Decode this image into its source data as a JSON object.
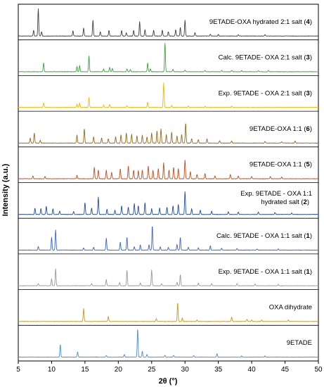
{
  "chart_data": {
    "type": "line",
    "xlabel": "2θ (°)",
    "ylabel": "Intensity (a.u.)",
    "xlim": [
      5,
      50
    ],
    "xticks": [
      5,
      10,
      15,
      20,
      25,
      30,
      35,
      40,
      45,
      50
    ],
    "grid": false,
    "layout": "stacked panels, top to bottom",
    "series": [
      {
        "label_parts": [
          {
            "t": "9ETADE-OXA hydrated 2:1 salt ("
          },
          {
            "t": "4",
            "b": true
          },
          {
            "t": ")"
          }
        ],
        "color": "#404040",
        "peaks": [
          [
            7.3,
            0.2
          ],
          [
            8.0,
            0.95
          ],
          [
            8.5,
            0.15
          ],
          [
            13.2,
            0.18
          ],
          [
            14.8,
            0.28
          ],
          [
            16.2,
            0.55
          ],
          [
            17.3,
            0.15
          ],
          [
            18.6,
            0.2
          ],
          [
            20.5,
            0.2
          ],
          [
            21.2,
            0.12
          ],
          [
            22.3,
            0.2
          ],
          [
            23.2,
            0.5
          ],
          [
            24.0,
            0.22
          ],
          [
            25.3,
            0.2
          ],
          [
            26.6,
            0.2
          ],
          [
            27.5,
            0.15
          ],
          [
            28.6,
            0.22
          ],
          [
            29.3,
            0.3
          ],
          [
            30.0,
            0.55
          ],
          [
            31.5,
            0.12
          ],
          [
            33.8,
            0.06
          ],
          [
            35.0,
            0.06
          ],
          [
            38.0,
            0.05
          ],
          [
            42.0,
            0.05
          ]
        ]
      },
      {
        "label_parts": [
          {
            "t": "Calc. 9ETADE- OXA 2:1 salt ("
          },
          {
            "t": "3",
            "b": true
          },
          {
            "t": ")"
          }
        ],
        "color": "#3aa63a",
        "peaks": [
          [
            8.8,
            0.3
          ],
          [
            13.8,
            0.18
          ],
          [
            14.2,
            0.22
          ],
          [
            15.6,
            0.55
          ],
          [
            17.8,
            0.1
          ],
          [
            18.7,
            0.15
          ],
          [
            19.1,
            0.12
          ],
          [
            21.3,
            0.1
          ],
          [
            21.8,
            0.08
          ],
          [
            24.4,
            0.3
          ],
          [
            24.8,
            0.1
          ],
          [
            27.0,
            1.0
          ],
          [
            28.2,
            0.08
          ],
          [
            30.0,
            0.06
          ],
          [
            33.0,
            0.05
          ],
          [
            35.5,
            0.05
          ],
          [
            37.0,
            0.05
          ],
          [
            38.5,
            0.04
          ],
          [
            41.0,
            0.04
          ],
          [
            42.5,
            0.05
          ]
        ]
      },
      {
        "label_parts": [
          {
            "t": "Exp. 9ETADE - OXA 2:1 salt ("
          },
          {
            "t": "3",
            "b": true
          },
          {
            "t": ")"
          }
        ],
        "color": "#f5b800",
        "peaks": [
          [
            8.8,
            0.16
          ],
          [
            13.8,
            0.12
          ],
          [
            14.2,
            0.16
          ],
          [
            15.6,
            0.35
          ],
          [
            17.8,
            0.08
          ],
          [
            18.7,
            0.1
          ],
          [
            21.3,
            0.06
          ],
          [
            24.4,
            0.18
          ],
          [
            26.8,
            0.85
          ],
          [
            28.0,
            0.08
          ],
          [
            30.5,
            0.05
          ],
          [
            33.0,
            0.04
          ],
          [
            37.0,
            0.04
          ]
        ]
      },
      {
        "label_parts": [
          {
            "t": "9ETADE-OXA 1:1 ("
          },
          {
            "t": "6",
            "b": true
          },
          {
            "t": ")"
          }
        ],
        "color": "#9a6a1a",
        "peaks": [
          [
            6.8,
            0.18
          ],
          [
            7.4,
            0.35
          ],
          [
            8.3,
            0.1
          ],
          [
            13.8,
            0.28
          ],
          [
            14.9,
            0.5
          ],
          [
            16.3,
            0.22
          ],
          [
            17.5,
            0.18
          ],
          [
            18.5,
            0.15
          ],
          [
            19.6,
            0.22
          ],
          [
            20.4,
            0.28
          ],
          [
            21.2,
            0.35
          ],
          [
            22.0,
            0.3
          ],
          [
            22.8,
            0.25
          ],
          [
            23.6,
            0.28
          ],
          [
            24.3,
            0.22
          ],
          [
            25.0,
            0.35
          ],
          [
            25.8,
            0.42
          ],
          [
            26.4,
            0.5
          ],
          [
            27.2,
            0.3
          ],
          [
            28.0,
            0.38
          ],
          [
            28.8,
            0.25
          ],
          [
            29.5,
            0.3
          ],
          [
            30.1,
            0.7
          ],
          [
            31.0,
            0.15
          ],
          [
            32.0,
            0.12
          ],
          [
            33.3,
            0.15
          ],
          [
            35.2,
            0.08
          ],
          [
            37.0,
            0.08
          ],
          [
            42.0,
            0.06
          ],
          [
            44.5,
            0.05
          ],
          [
            46.5,
            0.07
          ]
        ]
      },
      {
        "label_parts": [
          {
            "t": "9ETADE-OXA 1:1 ("
          },
          {
            "t": "5",
            "b": true
          },
          {
            "t": ")"
          }
        ],
        "color": "#c2501e",
        "peaks": [
          [
            7.2,
            0.1
          ],
          [
            9.0,
            0.08
          ],
          [
            13.8,
            0.12
          ],
          [
            16.4,
            0.4
          ],
          [
            17.0,
            0.3
          ],
          [
            18.2,
            0.3
          ],
          [
            19.0,
            0.22
          ],
          [
            20.3,
            0.35
          ],
          [
            21.5,
            0.45
          ],
          [
            22.3,
            0.3
          ],
          [
            23.0,
            0.28
          ],
          [
            23.6,
            0.3
          ],
          [
            24.5,
            0.45
          ],
          [
            25.2,
            0.3
          ],
          [
            26.0,
            0.35
          ],
          [
            26.8,
            0.55
          ],
          [
            27.6,
            0.3
          ],
          [
            28.3,
            0.4
          ],
          [
            29.0,
            0.35
          ],
          [
            30.0,
            0.65
          ],
          [
            30.8,
            0.25
          ],
          [
            31.8,
            0.15
          ],
          [
            33.0,
            0.18
          ],
          [
            34.5,
            0.1
          ],
          [
            36.8,
            0.15
          ],
          [
            38.0,
            0.1
          ],
          [
            40.0,
            0.08
          ],
          [
            42.8,
            0.08
          ],
          [
            44.5,
            0.06
          ]
        ]
      },
      {
        "label_parts": [
          {
            "t": "Exp. 9ETADE - OXA 1:1"
          }
        ],
        "label2_parts": [
          {
            "t": "hydrated salt ("
          },
          {
            "t": "2",
            "b": true
          },
          {
            "t": ")"
          }
        ],
        "color": "#1f4e96",
        "peaks": [
          [
            7.5,
            0.22
          ],
          [
            8.4,
            0.2
          ],
          [
            9.2,
            0.28
          ],
          [
            10.2,
            0.2
          ],
          [
            11.2,
            0.12
          ],
          [
            13.3,
            0.1
          ],
          [
            15.0,
            0.4
          ],
          [
            16.0,
            0.22
          ],
          [
            17.0,
            0.6
          ],
          [
            18.3,
            0.18
          ],
          [
            19.5,
            0.15
          ],
          [
            20.5,
            0.3
          ],
          [
            21.5,
            0.25
          ],
          [
            22.4,
            0.38
          ],
          [
            23.0,
            0.3
          ],
          [
            24.0,
            0.4
          ],
          [
            25.0,
            0.2
          ],
          [
            26.2,
            0.22
          ],
          [
            27.3,
            0.25
          ],
          [
            28.2,
            0.3
          ],
          [
            29.0,
            0.35
          ],
          [
            30.0,
            0.8
          ],
          [
            31.0,
            0.2
          ],
          [
            32.3,
            0.15
          ],
          [
            34.0,
            0.12
          ],
          [
            36.5,
            0.1
          ],
          [
            38.0,
            0.08
          ],
          [
            41.0,
            0.08
          ],
          [
            43.5,
            0.07
          ],
          [
            46.0,
            0.05
          ]
        ]
      },
      {
        "label_parts": [
          {
            "t": "Calc. 9ETADE - OXA 1:1 salt ("
          },
          {
            "t": "1",
            "b": true
          },
          {
            "t": ")"
          }
        ],
        "color": "#3a66cc",
        "peaks": [
          [
            8.0,
            0.12
          ],
          [
            10.0,
            0.45
          ],
          [
            10.6,
            0.7
          ],
          [
            14.8,
            0.08
          ],
          [
            16.3,
            0.1
          ],
          [
            18.2,
            0.42
          ],
          [
            20.3,
            0.28
          ],
          [
            21.3,
            0.45
          ],
          [
            22.4,
            0.12
          ],
          [
            23.3,
            0.18
          ],
          [
            24.6,
            0.18
          ],
          [
            25.1,
            0.85
          ],
          [
            26.3,
            0.12
          ],
          [
            27.5,
            0.1
          ],
          [
            28.8,
            0.2
          ],
          [
            29.3,
            0.45
          ],
          [
            30.5,
            0.1
          ],
          [
            32.0,
            0.08
          ],
          [
            33.8,
            0.15
          ],
          [
            35.5,
            0.06
          ],
          [
            37.8,
            0.05
          ],
          [
            40.8,
            0.04
          ],
          [
            44.0,
            0.04
          ]
        ]
      },
      {
        "label_parts": [
          {
            "t": "Exp. 9ETADE - OXA 1:1 salt ("
          },
          {
            "t": "1",
            "b": true
          },
          {
            "t": ")"
          }
        ],
        "color": "#9a9a9a",
        "peaks": [
          [
            8.0,
            0.08
          ],
          [
            10.0,
            0.25
          ],
          [
            10.6,
            0.6
          ],
          [
            16.0,
            0.08
          ],
          [
            18.2,
            0.22
          ],
          [
            20.2,
            0.12
          ],
          [
            21.3,
            0.55
          ],
          [
            23.3,
            0.1
          ],
          [
            25.0,
            0.55
          ],
          [
            26.5,
            0.08
          ],
          [
            28.8,
            0.12
          ],
          [
            29.3,
            0.4
          ],
          [
            32.0,
            0.1
          ],
          [
            34.0,
            0.08
          ],
          [
            37.8,
            0.08
          ],
          [
            40.5,
            0.06
          ],
          [
            44.0,
            0.05
          ]
        ]
      },
      {
        "label_parts": [
          {
            "t": "OXA dihydrate"
          }
        ],
        "color": "#c79a1e",
        "peaks": [
          [
            14.8,
            0.45
          ],
          [
            18.5,
            0.18
          ],
          [
            25.7,
            0.1
          ],
          [
            28.9,
            0.65
          ],
          [
            29.6,
            0.12
          ],
          [
            31.8,
            0.05
          ],
          [
            37.0,
            0.15
          ],
          [
            39.3,
            0.08
          ],
          [
            40.0,
            0.05
          ],
          [
            41.5,
            0.05
          ],
          [
            45.5,
            0.05
          ]
        ]
      },
      {
        "label_parts": [
          {
            "t": "9ETADE"
          }
        ],
        "color": "#4a8fd6",
        "peaks": [
          [
            11.3,
            0.45
          ],
          [
            13.9,
            0.18
          ],
          [
            18.2,
            0.06
          ],
          [
            20.9,
            0.1
          ],
          [
            22.9,
            1.0
          ],
          [
            23.6,
            0.2
          ],
          [
            24.3,
            0.1
          ],
          [
            27.0,
            0.06
          ],
          [
            28.3,
            0.06
          ],
          [
            31.3,
            0.05
          ],
          [
            34.8,
            0.12
          ],
          [
            38.5,
            0.04
          ],
          [
            42.0,
            0.04
          ]
        ]
      }
    ]
  }
}
